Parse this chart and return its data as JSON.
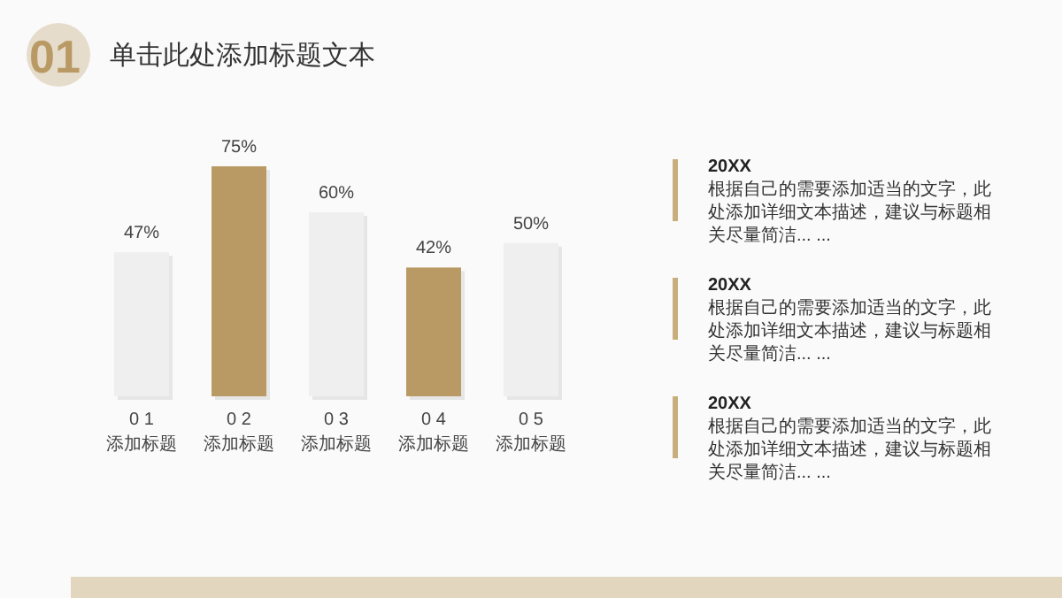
{
  "chart_data": {
    "type": "bar",
    "title": "单击此处添加标题文本",
    "categories": [
      "0 1\n添加标题",
      "0 2\n添加标题",
      "0 3\n添加标题",
      "0 4\n添加标题",
      "0 5\n添加标题"
    ],
    "values": [
      47,
      75,
      60,
      42,
      50
    ],
    "value_labels": [
      "47%",
      "75%",
      "60%",
      "42%",
      "50%"
    ],
    "colors": [
      "#efefef",
      "#b99a64",
      "#efefef",
      "#b99a64",
      "#efefef"
    ],
    "annotations": [
      "01",
      "20XX",
      "根据自己的需要添加适当的文字，此处添加详细文本描述，建议与标题相关尽量简洁... ...",
      "20XX",
      "根据自己的需要添加适当的文字，此处添加详细文本描述，建议与标题相关尽量简洁... ...",
      "20XX",
      "根据自己的需要添加适当的文字，此处添加详细文本描述，建议与标题相关尽量简洁... ..."
    ]
  }
}
